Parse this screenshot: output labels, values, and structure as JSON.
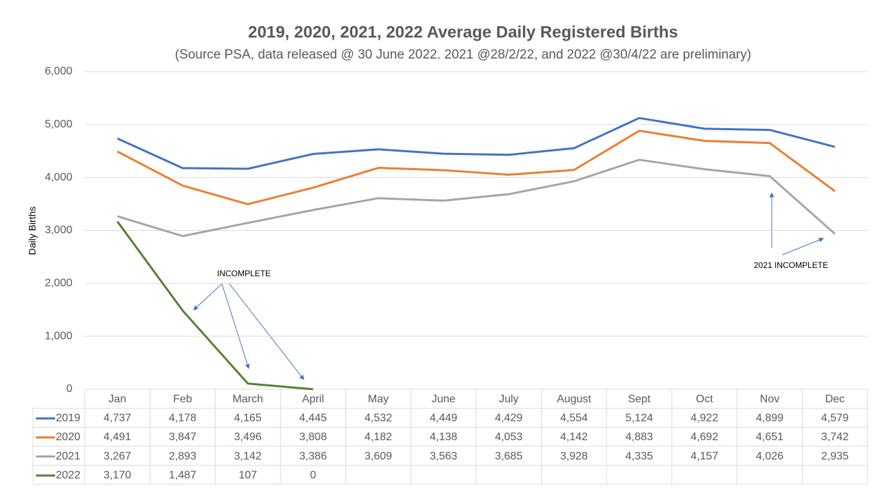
{
  "chart_data": {
    "type": "line",
    "title": "2019, 2020, 2021, 2022 Average Daily Registered Births",
    "subtitle": "(Source PSA, data released @ 30 June 2022.  2021 @28/2/22, and 2022 @30/4/22 are preliminary)",
    "y_label": "Daily Births",
    "categories": [
      "Jan",
      "Feb",
      "March",
      "April",
      "May",
      "June",
      "July",
      "August",
      "Sept",
      "Oct",
      "Nov",
      "Dec"
    ],
    "series": [
      {
        "name": "2019",
        "color": "#4472c4",
        "values": [
          4737,
          4178,
          4165,
          4445,
          4532,
          4449,
          4429,
          4554,
          5124,
          4922,
          4899,
          4579
        ],
        "value_labels": [
          "4,737",
          "4,178",
          "4,165",
          "4,445",
          "4,532",
          "4,449",
          "4,429",
          "4,554",
          "5,124",
          "4,922",
          "4,899",
          "4,579"
        ]
      },
      {
        "name": "2020",
        "color": "#ed7d31",
        "values": [
          4491,
          3847,
          3496,
          3808,
          4182,
          4138,
          4053,
          4142,
          4883,
          4692,
          4651,
          3742
        ],
        "value_labels": [
          "4,491",
          "3,847",
          "3,496",
          "3,808",
          "4,182",
          "4,138",
          "4,053",
          "4,142",
          "4,883",
          "4,692",
          "4,651",
          "3,742"
        ]
      },
      {
        "name": "2021",
        "color": "#a5a5a5",
        "values": [
          3267,
          2893,
          3142,
          3386,
          3609,
          3563,
          3685,
          3928,
          4335,
          4157,
          4026,
          2935
        ],
        "value_labels": [
          "3,267",
          "2,893",
          "3,142",
          "3,386",
          "3,609",
          "3,563",
          "3,685",
          "3,928",
          "4,335",
          "4,157",
          "4,026",
          "2,935"
        ]
      },
      {
        "name": "2022",
        "color": "#548235",
        "values": [
          3170,
          1487,
          107,
          0,
          null,
          null,
          null,
          null,
          null,
          null,
          null,
          null
        ],
        "value_labels": [
          "3,170",
          "1,487",
          "107",
          "0",
          null,
          null,
          null,
          null,
          null,
          null,
          null,
          null
        ]
      }
    ],
    "ylim": [
      0,
      6000
    ],
    "yticks": [
      0,
      {
        "value": 1000,
        "label": "1,000"
      },
      {
        "value": 2000,
        "label": "2,000"
      },
      {
        "value": 3000,
        "label": "3,000"
      },
      {
        "value": 4000,
        "label": "4,000"
      },
      {
        "value": 5000,
        "label": "5,000"
      },
      {
        "value": 6000,
        "label": "6,000"
      }
    ],
    "grid": true,
    "annotations": [
      "INCOMPLETE",
      "2021 INCOMPLETE"
    ]
  }
}
